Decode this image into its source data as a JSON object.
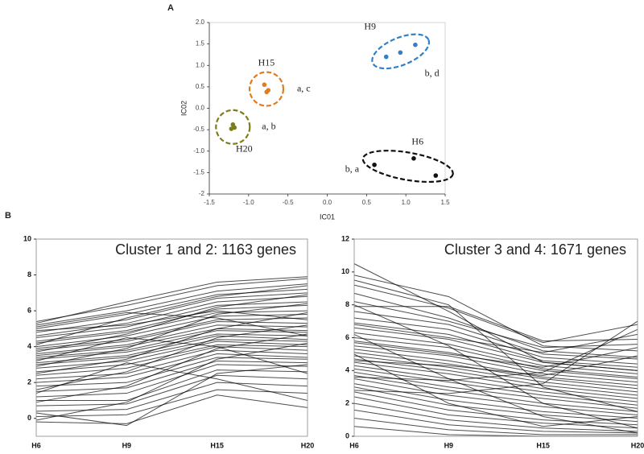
{
  "panel_labels": [
    "A",
    "B"
  ],
  "chart_data": [
    {
      "type": "scatter",
      "xlabel": "IC01",
      "ylabel": "IC02",
      "xlim": [
        -1.5,
        1.5
      ],
      "ylim": [
        -2,
        2
      ],
      "xticks": [
        -1.5,
        {
          "value": -1,
          "label": "-1.0"
        },
        -0.5,
        {
          "value": 0,
          "label": "0.0"
        },
        0.5,
        {
          "value": 1,
          "label": "1.0"
        },
        1.5
      ],
      "yticks": [
        -2,
        -1.5,
        {
          "value": -1,
          "label": "-1.0"
        },
        -0.5,
        {
          "value": 0,
          "label": "0.0"
        },
        0.5,
        {
          "value": 1,
          "label": "1.0"
        },
        1.5,
        {
          "value": 2,
          "label": "2.0"
        }
      ],
      "series": [
        {
          "name": "H9",
          "label": "b, d",
          "color": "#2f80c8",
          "x": [
            0.75,
            0.93,
            1.12
          ],
          "y": [
            1.2,
            1.3,
            1.48
          ]
        },
        {
          "name": "H15",
          "label": "a, c",
          "color": "#e07b22",
          "x": [
            -0.8,
            -0.77,
            -0.75
          ],
          "y": [
            0.55,
            0.38,
            0.42
          ]
        },
        {
          "name": "H20",
          "label": "a, b",
          "color": "#7d7d1c",
          "x": [
            -1.2,
            -1.22,
            -1.18
          ],
          "y": [
            -0.38,
            -0.48,
            -0.45
          ]
        },
        {
          "name": "H6",
          "label": "b, a",
          "color": "#111111",
          "x": [
            0.6,
            1.1,
            1.38
          ],
          "y": [
            -1.32,
            -1.17,
            -1.57
          ]
        }
      ]
    },
    {
      "type": "line",
      "title": "Cluster 1 and 2: 1163 genes",
      "color": "#000000",
      "categories": [
        "H6",
        "H9",
        "H15",
        "H20"
      ],
      "ylim": [
        -1,
        10
      ],
      "yticks": [
        0,
        2,
        4,
        6,
        8,
        10
      ],
      "series": [
        {
          "values": [
            5.4,
            6.3,
            7.4,
            7.8
          ]
        },
        {
          "values": [
            5.2,
            6.0,
            7.1,
            7.5
          ]
        },
        {
          "values": [
            5.0,
            5.8,
            6.9,
            7.2
          ]
        },
        {
          "values": [
            4.8,
            5.5,
            6.7,
            7.0
          ]
        },
        {
          "values": [
            4.6,
            5.3,
            6.5,
            6.8
          ]
        },
        {
          "values": [
            4.5,
            5.1,
            6.3,
            6.5
          ]
        },
        {
          "values": [
            4.3,
            4.9,
            6.1,
            6.3
          ]
        },
        {
          "values": [
            4.2,
            4.8,
            5.9,
            6.0
          ]
        },
        {
          "values": [
            4.0,
            4.6,
            5.7,
            5.8
          ]
        },
        {
          "values": [
            3.9,
            4.4,
            5.5,
            5.6
          ]
        },
        {
          "values": [
            3.8,
            4.3,
            5.4,
            5.3
          ]
        },
        {
          "values": [
            3.6,
            4.1,
            5.2,
            5.1
          ]
        },
        {
          "values": [
            3.5,
            4.0,
            5.0,
            4.9
          ]
        },
        {
          "values": [
            3.4,
            3.8,
            4.9,
            4.8
          ]
        },
        {
          "values": [
            3.3,
            3.7,
            4.7,
            4.6
          ]
        },
        {
          "values": [
            3.1,
            3.5,
            4.6,
            4.4
          ]
        },
        {
          "values": [
            3.0,
            3.4,
            4.4,
            4.3
          ]
        },
        {
          "values": [
            2.8,
            3.2,
            4.3,
            4.1
          ]
        },
        {
          "values": [
            2.6,
            3.0,
            4.1,
            4.0
          ]
        },
        {
          "values": [
            2.4,
            2.8,
            4.0,
            3.8
          ]
        },
        {
          "values": [
            2.2,
            2.5,
            3.8,
            3.6
          ]
        },
        {
          "values": [
            2.0,
            2.3,
            3.6,
            3.4
          ]
        },
        {
          "values": [
            1.8,
            2.0,
            3.4,
            3.3
          ]
        },
        {
          "values": [
            1.5,
            1.7,
            3.2,
            3.1
          ]
        },
        {
          "values": [
            1.2,
            1.4,
            3.0,
            2.9
          ]
        },
        {
          "values": [
            1.0,
            1.0,
            2.7,
            2.6
          ]
        },
        {
          "values": [
            0.7,
            0.8,
            2.4,
            2.2
          ]
        },
        {
          "values": [
            0.4,
            0.5,
            2.0,
            1.8
          ]
        },
        {
          "values": [
            0.1,
            0.2,
            1.6,
            1.4
          ]
        },
        {
          "values": [
            -0.2,
            -0.3,
            1.3,
            0.6
          ]
        },
        {
          "values": [
            5.3,
            6.5,
            7.6,
            7.9
          ]
        },
        {
          "values": [
            4.9,
            5.2,
            6.0,
            5.5
          ]
        },
        {
          "values": [
            4.1,
            5.6,
            6.8,
            7.4
          ]
        },
        {
          "values": [
            3.7,
            4.7,
            6.2,
            6.9
          ]
        },
        {
          "values": [
            2.9,
            3.9,
            5.8,
            6.4
          ]
        },
        {
          "values": [
            2.5,
            3.3,
            5.0,
            5.9
          ]
        },
        {
          "values": [
            1.6,
            2.6,
            4.5,
            5.2
          ]
        },
        {
          "values": [
            0.9,
            1.8,
            3.9,
            4.7
          ]
        },
        {
          "values": [
            -0.1,
            0.9,
            3.3,
            4.2
          ]
        },
        {
          "values": [
            0.3,
            -0.4,
            2.5,
            3.0
          ]
        },
        {
          "values": [
            5.1,
            5.9,
            5.6,
            4.6
          ]
        },
        {
          "values": [
            3.2,
            4.5,
            4.0,
            2.5
          ]
        },
        {
          "values": [
            1.4,
            3.1,
            2.2,
            1.0
          ]
        }
      ]
    },
    {
      "type": "line",
      "title": "Cluster 3 and 4: 1671 genes",
      "color": "#000000",
      "categories": [
        "H6",
        "H9",
        "H15",
        "H20"
      ],
      "ylim": [
        0,
        12
      ],
      "yticks": [
        0,
        2,
        4,
        6,
        8,
        10,
        12
      ],
      "series": [
        {
          "values": [
            10.5,
            7.6,
            4.5,
            4.0
          ]
        },
        {
          "values": [
            9.8,
            8.5,
            5.5,
            5.2
          ]
        },
        {
          "values": [
            9.2,
            7.8,
            5.7,
            6.8
          ]
        },
        {
          "values": [
            8.7,
            7.2,
            5.2,
            4.8
          ]
        },
        {
          "values": [
            8.2,
            7.0,
            5.4,
            5.6
          ]
        },
        {
          "values": [
            7.6,
            6.8,
            5.0,
            4.7
          ]
        },
        {
          "values": [
            7.2,
            6.5,
            4.8,
            4.4
          ]
        },
        {
          "values": [
            6.9,
            6.2,
            4.6,
            4.2
          ]
        },
        {
          "values": [
            6.6,
            5.9,
            4.5,
            4.0
          ]
        },
        {
          "values": [
            6.3,
            5.6,
            4.3,
            3.8
          ]
        },
        {
          "values": [
            6.0,
            5.4,
            4.1,
            3.6
          ]
        },
        {
          "values": [
            5.8,
            5.1,
            4.0,
            3.5
          ]
        },
        {
          "values": [
            5.5,
            4.9,
            3.8,
            3.3
          ]
        },
        {
          "values": [
            5.3,
            4.6,
            3.6,
            3.1
          ]
        },
        {
          "values": [
            5.1,
            4.4,
            3.5,
            2.9
          ]
        },
        {
          "values": [
            4.9,
            4.2,
            3.3,
            2.7
          ]
        },
        {
          "values": [
            4.7,
            4.0,
            3.1,
            2.5
          ]
        },
        {
          "values": [
            4.5,
            3.8,
            2.9,
            2.3
          ]
        },
        {
          "values": [
            4.3,
            3.5,
            2.7,
            2.1
          ]
        },
        {
          "values": [
            4.1,
            3.3,
            2.5,
            1.9
          ]
        },
        {
          "values": [
            3.9,
            3.0,
            2.3,
            1.7
          ]
        },
        {
          "values": [
            3.7,
            2.8,
            2.0,
            1.5
          ]
        },
        {
          "values": [
            3.5,
            2.5,
            1.8,
            1.3
          ]
        },
        {
          "values": [
            3.2,
            2.2,
            1.5,
            1.1
          ]
        },
        {
          "values": [
            3.0,
            1.9,
            1.3,
            0.9
          ]
        },
        {
          "values": [
            2.7,
            1.6,
            1.0,
            0.7
          ]
        },
        {
          "values": [
            2.4,
            1.3,
            0.8,
            0.5
          ]
        },
        {
          "values": [
            2.0,
            1.0,
            0.5,
            0.3
          ]
        },
        {
          "values": [
            1.6,
            0.7,
            0.3,
            0.2
          ]
        },
        {
          "values": [
            1.1,
            0.4,
            0.1,
            0.1
          ]
        },
        {
          "values": [
            0.6,
            0.1,
            0.0,
            0.0
          ]
        },
        {
          "values": [
            7.9,
            7.9,
            5.8,
            5.9
          ]
        },
        {
          "values": [
            6.8,
            6.0,
            5.1,
            6.2
          ]
        },
        {
          "values": [
            5.7,
            5.0,
            4.2,
            5.4
          ]
        },
        {
          "values": [
            4.6,
            4.3,
            3.7,
            4.9
          ]
        },
        {
          "values": [
            8.0,
            5.5,
            2.0,
            0.5
          ]
        },
        {
          "values": [
            6.2,
            3.5,
            1.2,
            0.2
          ]
        },
        {
          "values": [
            5.0,
            2.0,
            0.6,
            1.2
          ]
        },
        {
          "values": [
            9.5,
            8.0,
            3.0,
            1.5
          ]
        },
        {
          "values": [
            3.6,
            3.4,
            3.9,
            6.5
          ]
        },
        {
          "values": [
            2.8,
            2.6,
            3.2,
            7.0
          ]
        }
      ]
    }
  ]
}
